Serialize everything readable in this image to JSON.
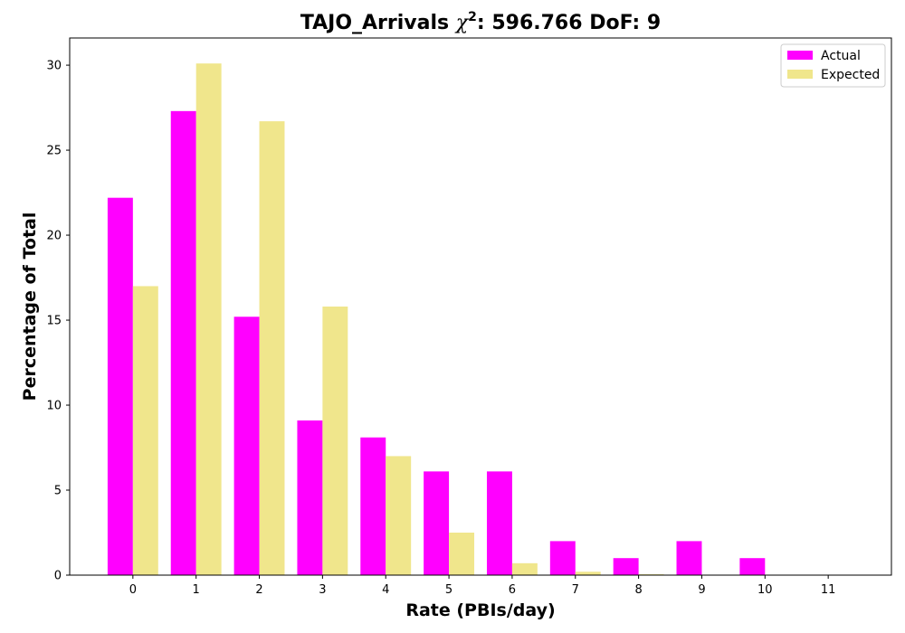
{
  "chart_data": {
    "type": "bar",
    "title_main": "TAJO_Arrivals ",
    "title_chi": "χ",
    "title_sup": "2",
    "title_rest": ": 596.766 DoF: 9",
    "xlabel": "Rate (PBIs/day)",
    "ylabel": "Percentage of Total",
    "categories": [
      "0",
      "1",
      "2",
      "3",
      "4",
      "5",
      "6",
      "7",
      "8",
      "9",
      "10",
      "11"
    ],
    "series": [
      {
        "name": "Actual",
        "color": "#ff00ff",
        "values": [
          22.2,
          27.3,
          15.2,
          9.1,
          8.1,
          6.1,
          6.1,
          2.0,
          1.0,
          2.0,
          1.0,
          0.0
        ]
      },
      {
        "name": "Expected",
        "color": "#f0e68c",
        "values": [
          17.0,
          30.1,
          26.7,
          15.8,
          7.0,
          2.5,
          0.7,
          0.2,
          0.05,
          0.0,
          0.0,
          0.0
        ]
      }
    ],
    "yticks": [
      0,
      5,
      10,
      15,
      20,
      25,
      30
    ],
    "ylim": [
      0,
      31.6
    ],
    "xlim": [
      -1,
      12
    ],
    "grid": false,
    "legend_position": "top-right"
  }
}
